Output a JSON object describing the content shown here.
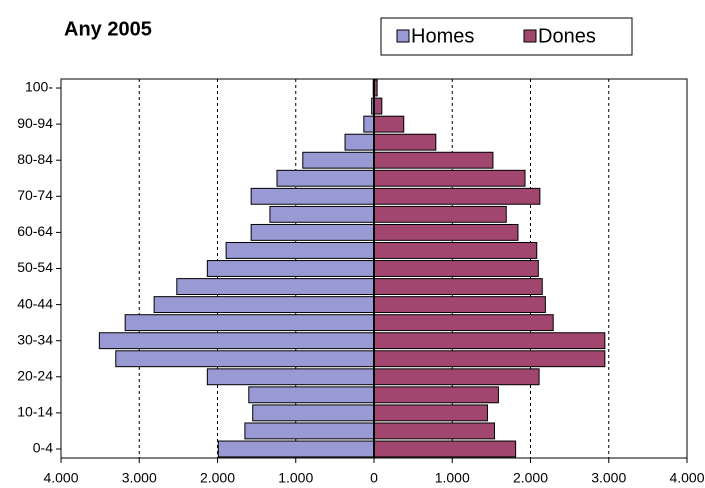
{
  "chart_data": {
    "type": "pyramid",
    "title": "Any 2005",
    "categories": [
      "0-4",
      null,
      "10-14",
      null,
      "20-24",
      null,
      "30-34",
      null,
      "40-44",
      null,
      "50-54",
      null,
      "60-64",
      null,
      "70-74",
      null,
      "80-84",
      null,
      "90-94",
      null,
      "100-"
    ],
    "series": [
      {
        "name": "Homes",
        "color": "#9999d4",
        "values": [
          -1990,
          -1650,
          -1550,
          -1600,
          -2130,
          -3300,
          -3510,
          -3180,
          -2810,
          -2520,
          -2130,
          -1890,
          -1570,
          -1330,
          -1570,
          -1240,
          -910,
          -370,
          -130,
          -30,
          -10
        ]
      },
      {
        "name": "Dones",
        "color": "#a1466f",
        "values": [
          1810,
          1540,
          1450,
          1590,
          2110,
          2950,
          2950,
          2290,
          2190,
          2150,
          2100,
          2080,
          1840,
          1690,
          2120,
          1930,
          1520,
          790,
          380,
          100,
          40
        ]
      }
    ],
    "xlim": [
      -4000,
      4000
    ],
    "xticks": [
      {
        "value": -4000,
        "label": "4.000"
      },
      {
        "value": -3000,
        "label": "3.000"
      },
      {
        "value": -2000,
        "label": "2.000"
      },
      {
        "value": -1000,
        "label": "1.000"
      },
      0,
      {
        "value": 1000,
        "label": "1.000"
      },
      {
        "value": 2000,
        "label": "2.000"
      },
      {
        "value": 3000,
        "label": "3.000"
      },
      {
        "value": 4000,
        "label": "4.000"
      }
    ],
    "grid": true
  }
}
